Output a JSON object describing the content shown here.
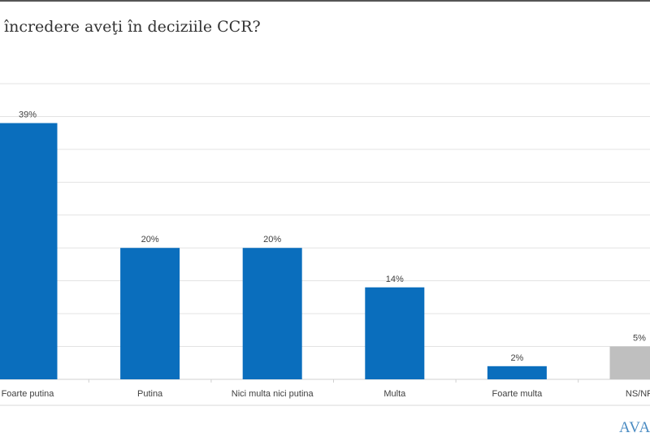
{
  "title": "încredere aveţi în deciziile CCR?",
  "logo_text": "AVAN",
  "chart_data": {
    "type": "bar",
    "title": "încredere aveţi în deciziile CCR?",
    "categories": [
      "Foarte putina",
      "Putina",
      "Nici multa nici putina",
      "Multa",
      "Foarte multa",
      "NS/NR"
    ],
    "values": [
      39,
      20,
      20,
      14,
      2,
      5
    ],
    "data_labels": [
      "39%",
      "20%",
      "20%",
      "14%",
      "2%",
      "5%"
    ],
    "colors": [
      "#0a6ebd",
      "#0a6ebd",
      "#0a6ebd",
      "#0a6ebd",
      "#0a6ebd",
      "#bfbfbf"
    ],
    "ylim": [
      0,
      45
    ],
    "grid": true,
    "xlabel": "",
    "ylabel": ""
  }
}
